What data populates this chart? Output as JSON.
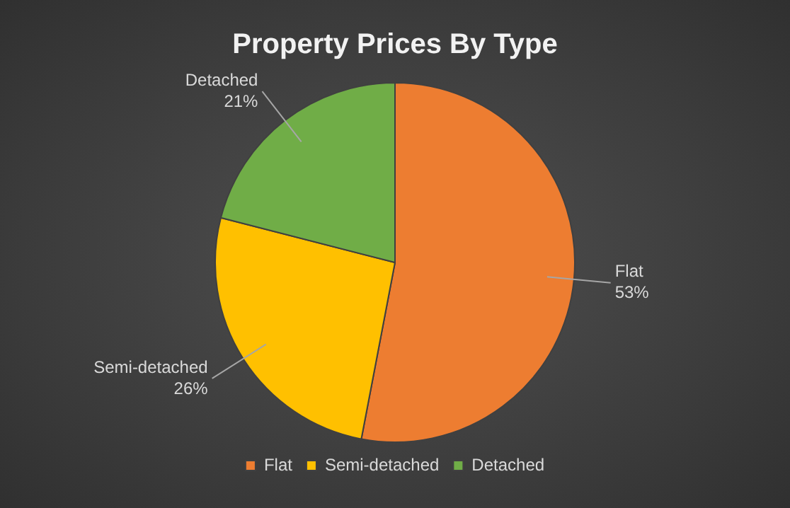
{
  "chart_data": {
    "type": "pie",
    "title": "Property Prices By Type",
    "categories": [
      "Flat",
      "Semi-detached",
      "Detached"
    ],
    "values": [
      53,
      26,
      21
    ],
    "value_labels": [
      "53%",
      "26%",
      "21%"
    ],
    "colors": [
      "#ed7d31",
      "#ffc000",
      "#70ad47"
    ],
    "legend": "bottom"
  }
}
